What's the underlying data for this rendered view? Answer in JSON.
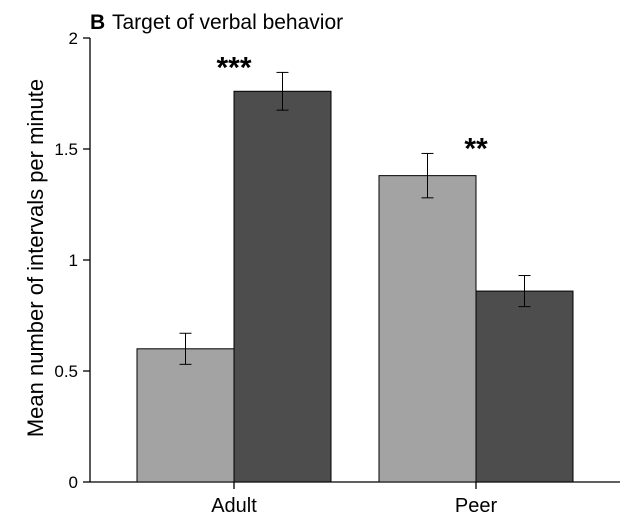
{
  "chart_data": {
    "type": "bar",
    "panel_letter": "B",
    "title": "Target of verbal behavior",
    "xlabel": "",
    "ylabel": "Mean number of intervals per minute",
    "ylim": [
      0,
      2
    ],
    "yticks": [
      0,
      0.5,
      1,
      1.5,
      2
    ],
    "ytick_labels": [
      "0",
      "0.5",
      "1",
      "1.5",
      "2"
    ],
    "categories": [
      "Adult",
      "Peer"
    ],
    "series": [
      {
        "color": "#a3a3a3",
        "values": [
          0.6,
          1.38
        ],
        "errors": [
          0.07,
          0.1
        ]
      },
      {
        "color": "#4d4d4d",
        "values": [
          1.76,
          0.86
        ],
        "errors": [
          0.085,
          0.07
        ]
      }
    ],
    "significance": [
      "***",
      "**"
    ],
    "grid": false,
    "legend": "none"
  }
}
